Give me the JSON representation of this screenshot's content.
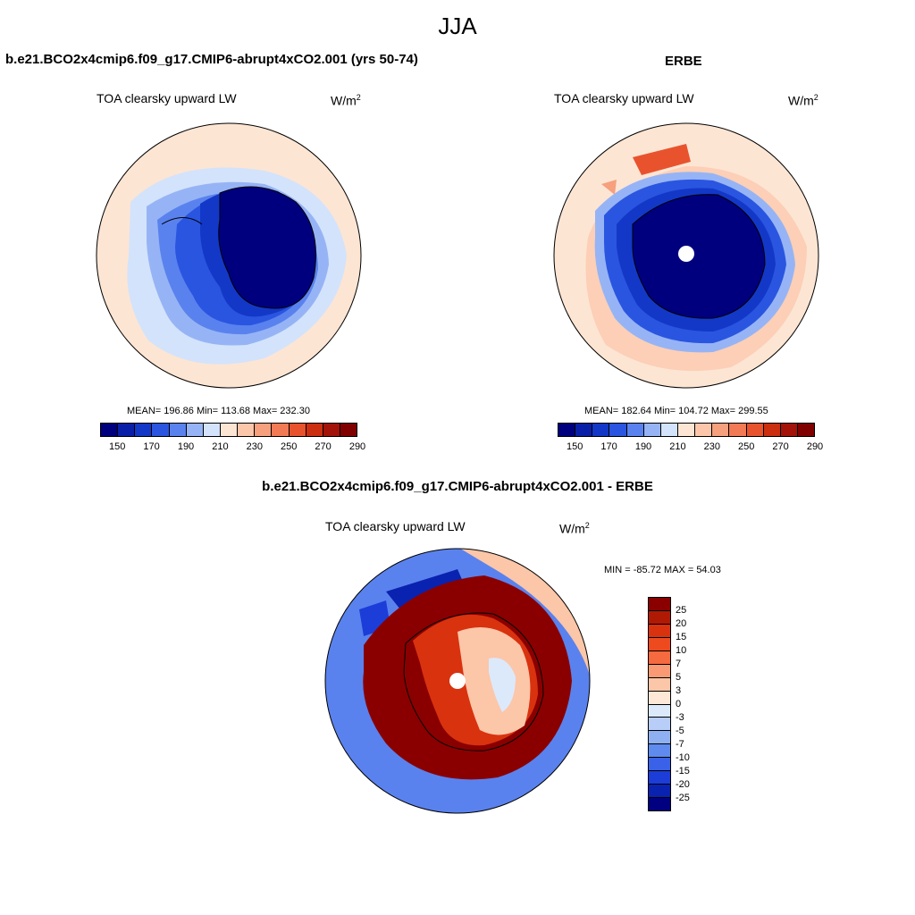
{
  "figure": {
    "season": "JJA",
    "units_main": "W/m",
    "units_sup": "2",
    "variable": "TOA clearsky upward LW"
  },
  "panels": {
    "model": {
      "title": "b.e21.BCO2x4cmip6.f09_g17.CMIP6-abrupt4xCO2.001 (yrs 50-74)",
      "stats": "MEAN= 196.86  Min= 113.68  Max= 232.30"
    },
    "obs": {
      "title": "ERBE",
      "stats": "MEAN= 182.64  Min= 104.72  Max= 299.55"
    },
    "diff": {
      "title": "b.e21.BCO2x4cmip6.f09_g17.CMIP6-abrupt4xCO2.001 - ERBE",
      "stats": "MIN = -85.72 MAX =  54.03"
    }
  },
  "colorbars": {
    "absolute": {
      "labels": [
        "150",
        "170",
        "190",
        "210",
        "230",
        "250",
        "270",
        "290"
      ],
      "colors": [
        "#00007f",
        "#0a1fa8",
        "#1338c8",
        "#2a55e0",
        "#5a82ee",
        "#96b4f5",
        "#d3e3fb",
        "#fde5d4",
        "#fbc6aa",
        "#f6a07e",
        "#f27a55",
        "#e8532e",
        "#cc2e10",
        "#a3130a",
        "#800000"
      ]
    },
    "difference": {
      "labels": [
        "25",
        "20",
        "15",
        "10",
        "7",
        "5",
        "3",
        "0",
        "-3",
        "-5",
        "-7",
        "-10",
        "-15",
        "-20",
        "-25"
      ],
      "colors": [
        "#8a0000",
        "#b01a05",
        "#d9320f",
        "#ee4a1f",
        "#f56a3e",
        "#f99a74",
        "#fcc6a8",
        "#fde8d8",
        "#dce9fb",
        "#b8cdf7",
        "#8eb0f2",
        "#5f8aee",
        "#3a62e8",
        "#1c3dd8",
        "#0a22b0",
        "#000080"
      ]
    }
  },
  "palette": {
    "ocean_model": "#d3e3fb",
    "edge_warm": "#fde5d4",
    "ocean_obs": "#fde5d4",
    "diff_blue": "#5a82ee",
    "diff_red": "#8a0000"
  }
}
